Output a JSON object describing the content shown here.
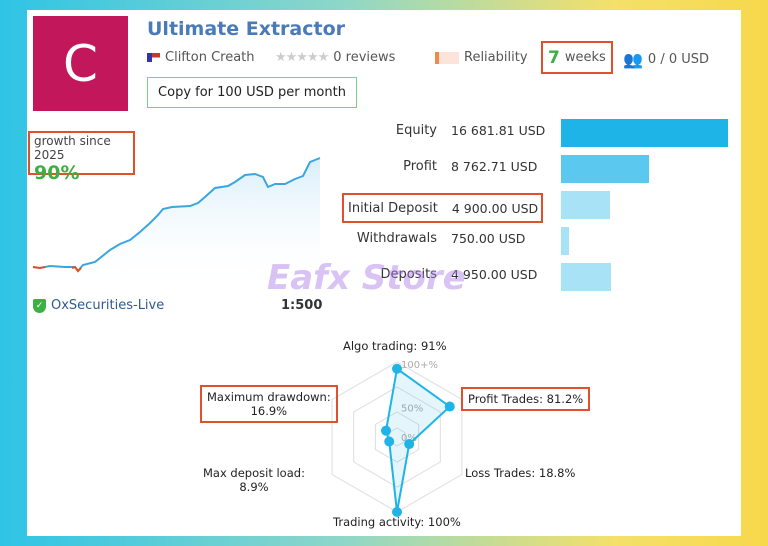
{
  "profile": {
    "avatar_letter": "C",
    "title": "Ultimate Extractor",
    "author": "Clifton Creath",
    "reviews": "0 reviews",
    "rating_stars": 0,
    "reliability": "Reliability",
    "weeks_num": "7",
    "weeks_label": "weeks",
    "subscribers": "0 / 0 USD",
    "copy_button": "Copy for 100 USD per month"
  },
  "growth": {
    "label": "growth since 2025",
    "value": "90%",
    "broker": "OxSecurities-Live",
    "leverage": "1:500"
  },
  "stats": [
    {
      "label": "Equity",
      "value": "16 681.81 USD",
      "amount": 16681.81
    },
    {
      "label": "Profit",
      "value": "8 762.71 USD",
      "amount": 8762.71
    },
    {
      "label": "Initial Deposit",
      "value": "4 900.00 USD",
      "amount": 4900
    },
    {
      "label": "Withdrawals",
      "value": "750.00 USD",
      "amount": 750
    },
    {
      "label": "Deposits",
      "value": "4 950.00 USD",
      "amount": 4950
    }
  ],
  "radar": {
    "ticks": [
      "100+%",
      "50%",
      "0%"
    ],
    "axes": [
      {
        "label": "Algo trading: 91%",
        "value": 91
      },
      {
        "label": "Profit Trades: 81.2%",
        "value": 81.2
      },
      {
        "label": "Loss Trades: 18.8%",
        "value": 18.8
      },
      {
        "label": "Trading activity: 100%",
        "value": 100
      },
      {
        "label": "Max deposit load:",
        "value_text": "8.9%",
        "value": 8.9
      },
      {
        "label": "Maximum drawdown:",
        "value_text": "16.9%",
        "value": 16.9
      }
    ]
  },
  "watermark": "Eafx Store",
  "colors": {
    "accent": "#1fb4e8",
    "highlight": "#e0502a",
    "green": "#3cb043"
  }
}
